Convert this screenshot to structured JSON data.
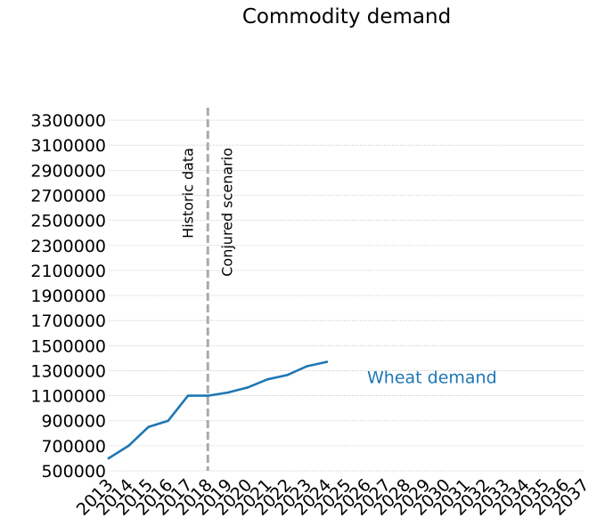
{
  "chart_data": {
    "type": "line",
    "title": "Commodity demand",
    "xlabel": "",
    "ylabel": "",
    "x": [
      2013,
      2014,
      2015,
      2016,
      2017,
      2018,
      2019,
      2020,
      2021,
      2022,
      2023,
      2024
    ],
    "x_ticks": [
      "2013",
      "2014",
      "2015",
      "2016",
      "2017",
      "2018",
      "2019",
      "2020",
      "2021",
      "2022",
      "2023",
      "2024",
      "2025",
      "2026",
      "2027",
      "2028",
      "2029",
      "2030",
      "2031",
      "2032",
      "2033",
      "2034",
      "2035",
      "2036",
      "2037"
    ],
    "xlim": [
      2013,
      2037
    ],
    "y_ticks": [
      500000,
      700000,
      900000,
      1100000,
      1300000,
      1500000,
      1700000,
      1900000,
      2100000,
      2300000,
      2500000,
      2700000,
      2900000,
      3100000,
      3300000
    ],
    "ylim": [
      500000,
      3400000
    ],
    "grid": "horizontal-dotted",
    "series": [
      {
        "name": "Wheat demand",
        "color": "#1f77b4",
        "values": [
          600000,
          700000,
          850000,
          900000,
          1100000,
          1100000,
          1125000,
          1165000,
          1230000,
          1265000,
          1335000,
          1370000
        ]
      }
    ],
    "annotations": {
      "divider_x": 2018,
      "divider_color": "#aaaaaa",
      "left_label": "Historic data",
      "right_label": "Conjured scenario"
    }
  }
}
